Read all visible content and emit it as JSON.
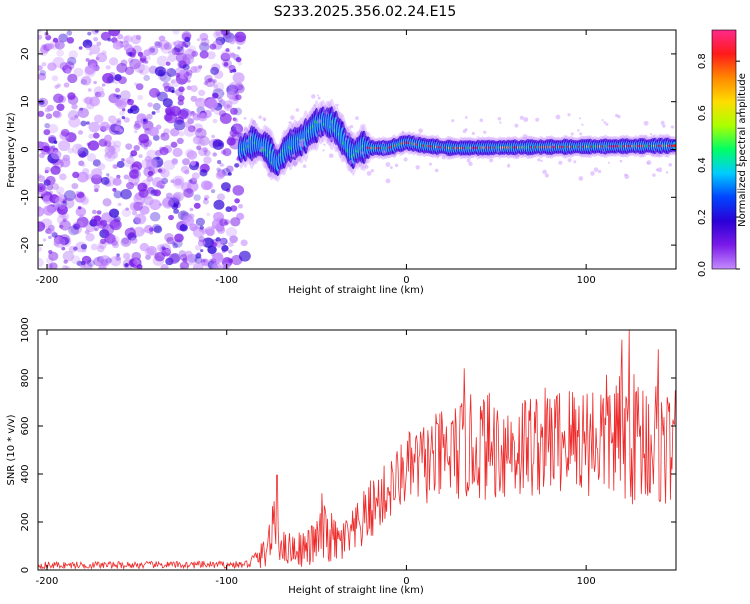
{
  "figure_title": "S233.2025.356.02.24.E15",
  "colors": {
    "background": "#ffffff",
    "axis": "#000000",
    "snr_line": "#ee2a2a",
    "colormap": [
      "#ffffff",
      "#c58cff",
      "#7a1ae8",
      "#2b00d6",
      "#0044ff",
      "#00ccff",
      "#00ff66",
      "#aaff00",
      "#ffdd00",
      "#ff8800",
      "#ff1a1a",
      "#ff2a8c"
    ]
  },
  "chart_data": [
    {
      "type": "heatmap",
      "title": "S233.2025.356.02.24.E15",
      "xlabel": "Height of straight line (km)",
      "ylabel": "Frequency (Hz)",
      "xlim": [
        -205,
        150
      ],
      "ylim": [
        -25,
        25
      ],
      "x_ticks": [
        -200,
        -100,
        0,
        100
      ],
      "y_ticks": [
        -20,
        -10,
        0,
        10,
        20
      ],
      "x_tick_labels": [
        "-200",
        "-100",
        "0",
        "100"
      ],
      "y_tick_labels": [
        "-20",
        "-10",
        "0",
        "10",
        "20"
      ],
      "noise_region_x": [
        -205,
        -92
      ],
      "signal_ridge": [
        {
          "x": -92,
          "y": 0.0
        },
        {
          "x": -85,
          "y": 1.5
        },
        {
          "x": -78,
          "y": 0.5
        },
        {
          "x": -72,
          "y": -3.0
        },
        {
          "x": -66,
          "y": 0.5
        },
        {
          "x": -58,
          "y": 2.0
        },
        {
          "x": -52,
          "y": 4.5
        },
        {
          "x": -46,
          "y": 6.0
        },
        {
          "x": -40,
          "y": 5.0
        },
        {
          "x": -35,
          "y": 2.0
        },
        {
          "x": -30,
          "y": -1.0
        },
        {
          "x": -25,
          "y": 0.5
        },
        {
          "x": -18,
          "y": 0.3
        },
        {
          "x": -10,
          "y": 0.3
        },
        {
          "x": 0,
          "y": 1.5
        },
        {
          "x": 10,
          "y": 0.8
        },
        {
          "x": 25,
          "y": 0.3
        },
        {
          "x": 50,
          "y": 0.4
        },
        {
          "x": 75,
          "y": 0.5
        },
        {
          "x": 100,
          "y": 0.6
        },
        {
          "x": 125,
          "y": 0.7
        },
        {
          "x": 150,
          "y": 0.8
        }
      ],
      "colorbar": {
        "label": "Normalized spectral amplitude",
        "range": [
          0.0,
          0.92
        ],
        "ticks": [
          0.0,
          0.2,
          0.4,
          0.6,
          0.8
        ],
        "tick_labels": [
          "0.0",
          "0.2",
          "0.4",
          "0.6",
          "0.8"
        ]
      }
    },
    {
      "type": "line",
      "xlabel": "Height of straight line (km)",
      "ylabel": "SNR (10 * v/v)",
      "xlim": [
        -205,
        150
      ],
      "ylim": [
        0,
        1000
      ],
      "x_ticks": [
        -200,
        -100,
        0,
        100
      ],
      "y_ticks": [
        0,
        200,
        400,
        600,
        800,
        1000
      ],
      "x_tick_labels": [
        "-200",
        "-100",
        "0",
        "100"
      ],
      "y_tick_labels": [
        "0",
        "200",
        "400",
        "600",
        "800",
        "1000"
      ],
      "series": [
        {
          "name": "SNR",
          "envelope": [
            {
              "x": -205,
              "base": 20,
              "amp": 15
            },
            {
              "x": -90,
              "base": 22,
              "amp": 15
            },
            {
              "x": -80,
              "base": 60,
              "amp": 60
            },
            {
              "x": -73,
              "base": 180,
              "amp": 130
            },
            {
              "x": -68,
              "base": 90,
              "amp": 70
            },
            {
              "x": -55,
              "base": 90,
              "amp": 80
            },
            {
              "x": -45,
              "base": 150,
              "amp": 130
            },
            {
              "x": -38,
              "base": 110,
              "amp": 90
            },
            {
              "x": -30,
              "base": 140,
              "amp": 110
            },
            {
              "x": -20,
              "base": 250,
              "amp": 130
            },
            {
              "x": -10,
              "base": 330,
              "amp": 130
            },
            {
              "x": 0,
              "base": 420,
              "amp": 150
            },
            {
              "x": 20,
              "base": 470,
              "amp": 200
            },
            {
              "x": 40,
              "base": 520,
              "amp": 230
            },
            {
              "x": 60,
              "base": 510,
              "amp": 230
            },
            {
              "x": 80,
              "base": 540,
              "amp": 230
            },
            {
              "x": 100,
              "base": 550,
              "amp": 250
            },
            {
              "x": 120,
              "base": 560,
              "amp": 280
            },
            {
              "x": 135,
              "base": 540,
              "amp": 280
            },
            {
              "x": 150,
              "base": 500,
              "amp": 250
            }
          ],
          "peaks": [
            {
              "x": -72,
              "y": 395
            },
            {
              "x": -47,
              "y": 320
            },
            {
              "x": 32,
              "y": 840
            },
            {
              "x": 120,
              "y": 960
            },
            {
              "x": 124,
              "y": 1000
            },
            {
              "x": 140,
              "y": 920
            }
          ]
        }
      ]
    }
  ]
}
